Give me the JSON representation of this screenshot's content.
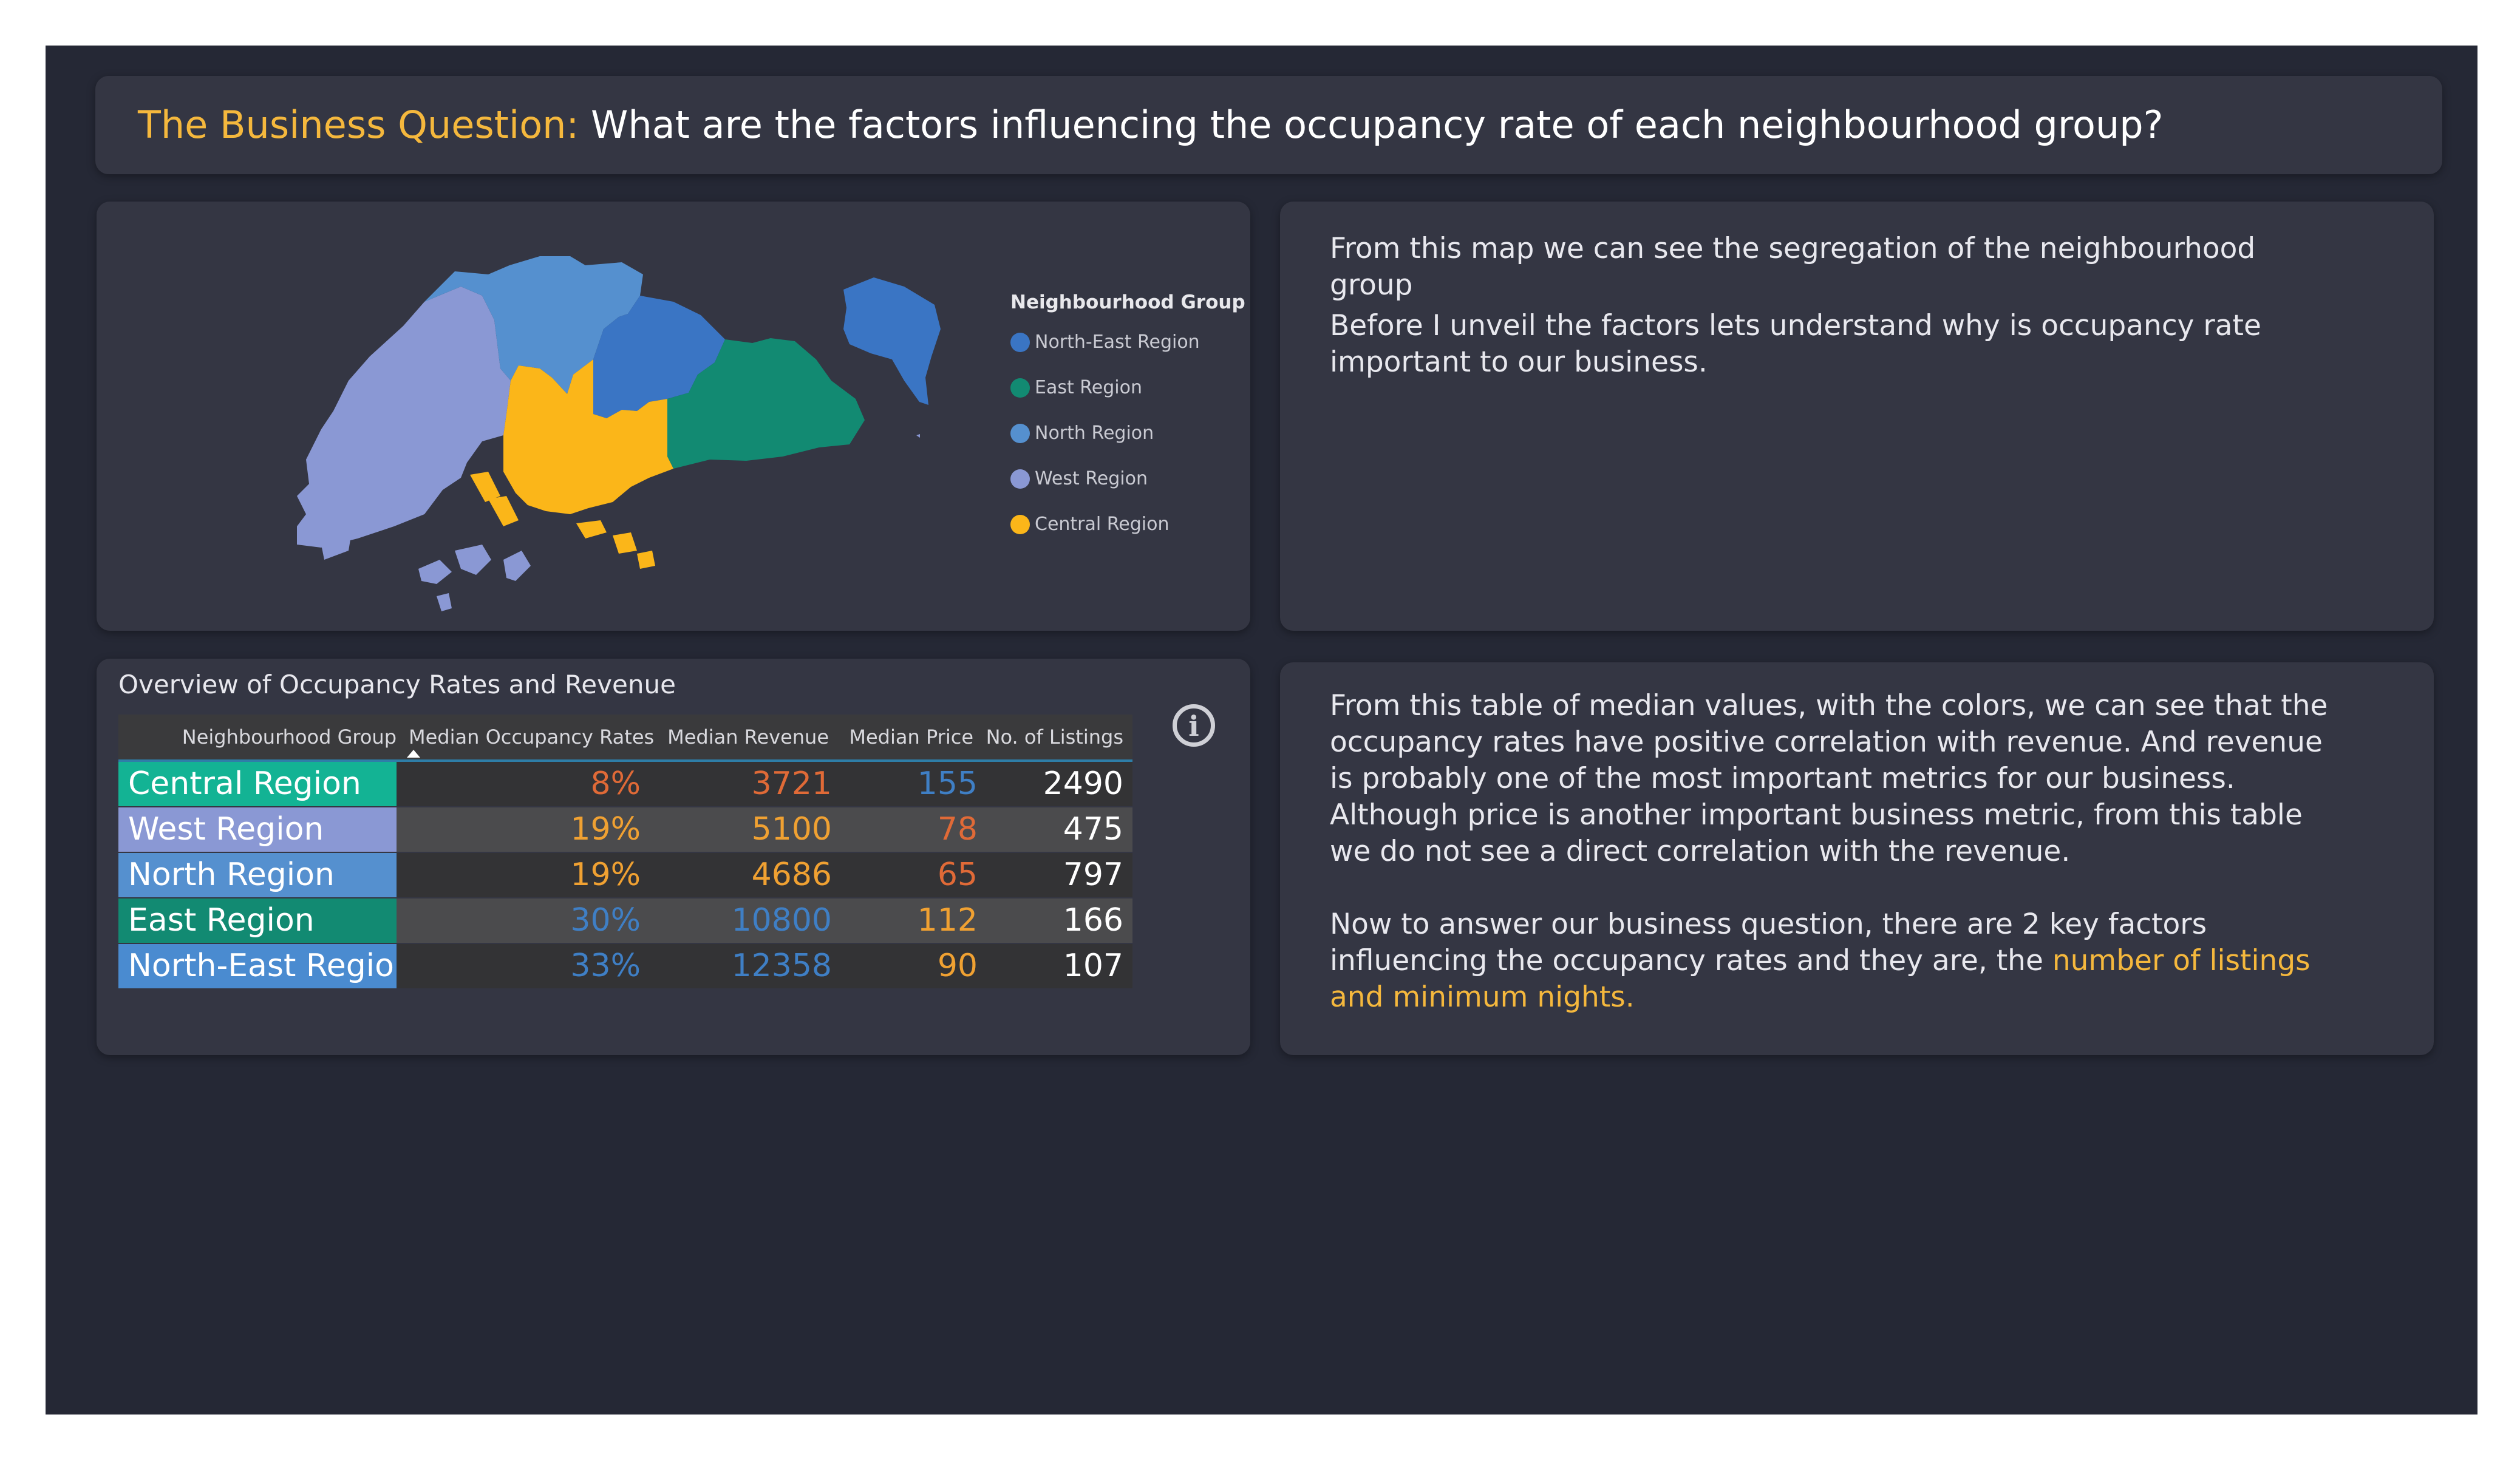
{
  "title": {
    "prefix": "The Business Question:",
    "question": " What are the factors influencing the occupancy rate of each neighbourhood group?"
  },
  "map": {
    "legend_title": "Neighbourhood Group",
    "legend": [
      {
        "label": "North-East Region",
        "color": "#3a75c4"
      },
      {
        "label": "East Region",
        "color": "#128a72"
      },
      {
        "label": "North Region",
        "color": "#5590cf"
      },
      {
        "label": "West Region",
        "color": "#8a98d4"
      },
      {
        "label": "Central Region",
        "color": "#fbb619"
      }
    ]
  },
  "text_panel_1": {
    "p1": "From this map we can see the segregation of the neighbourhood group",
    "p2": "Before I unveil the factors lets understand why is occupancy rate important to our business."
  },
  "text_panel_2": {
    "p1": "From this table of median values, with the colors, we can see that the occupancy rates have positive correlation with revenue. And revenue is probably one of the most important metrics for our business. Although price is another important business metric, from this table we do not see a direct correlation with the revenue.",
    "p2_start": "Now to answer our business question, there are 2 key factors influencing the occupancy rates and they are, the ",
    "p2_highlight": "number of listings and minimum nights."
  },
  "table": {
    "title": "Overview of Occupancy Rates and Revenue",
    "headers": [
      "Neighbourhood Group",
      "Median Occupancy Rates",
      "Median Revenue",
      "Median Price",
      "No. of Listings"
    ],
    "rows": [
      {
        "name": "Central Region",
        "name_color": "#13b394",
        "occupancy": "8%",
        "occ_color": "#e06a37",
        "revenue": "3721",
        "rev_color": "#e06a37",
        "price": "155",
        "price_color": "#3f7fc5",
        "listings": "2490"
      },
      {
        "name": "West Region",
        "name_color": "#8a98d4",
        "occupancy": "19%",
        "occ_color": "#f0a132",
        "revenue": "5100",
        "rev_color": "#f0a132",
        "price": "78",
        "price_color": "#e06a37",
        "listings": "475"
      },
      {
        "name": "North Region",
        "name_color": "#5590cf",
        "occupancy": "19%",
        "occ_color": "#f0a132",
        "revenue": "4686",
        "rev_color": "#f0a132",
        "price": "65",
        "price_color": "#e06a37",
        "listings": "797"
      },
      {
        "name": "East Region",
        "name_color": "#128a72",
        "occupancy": "30%",
        "occ_color": "#3f7fc5",
        "revenue": "10800",
        "rev_color": "#3f7fc5",
        "price": "112",
        "price_color": "#f0a132",
        "listings": "166"
      },
      {
        "name": "North-East Region",
        "name_color": "#4a8bd0",
        "occupancy": "33%",
        "occ_color": "#3f7fc5",
        "revenue": "12358",
        "rev_color": "#3f7fc5",
        "price": "90",
        "price_color": "#f0a132",
        "listings": "107"
      }
    ]
  }
}
